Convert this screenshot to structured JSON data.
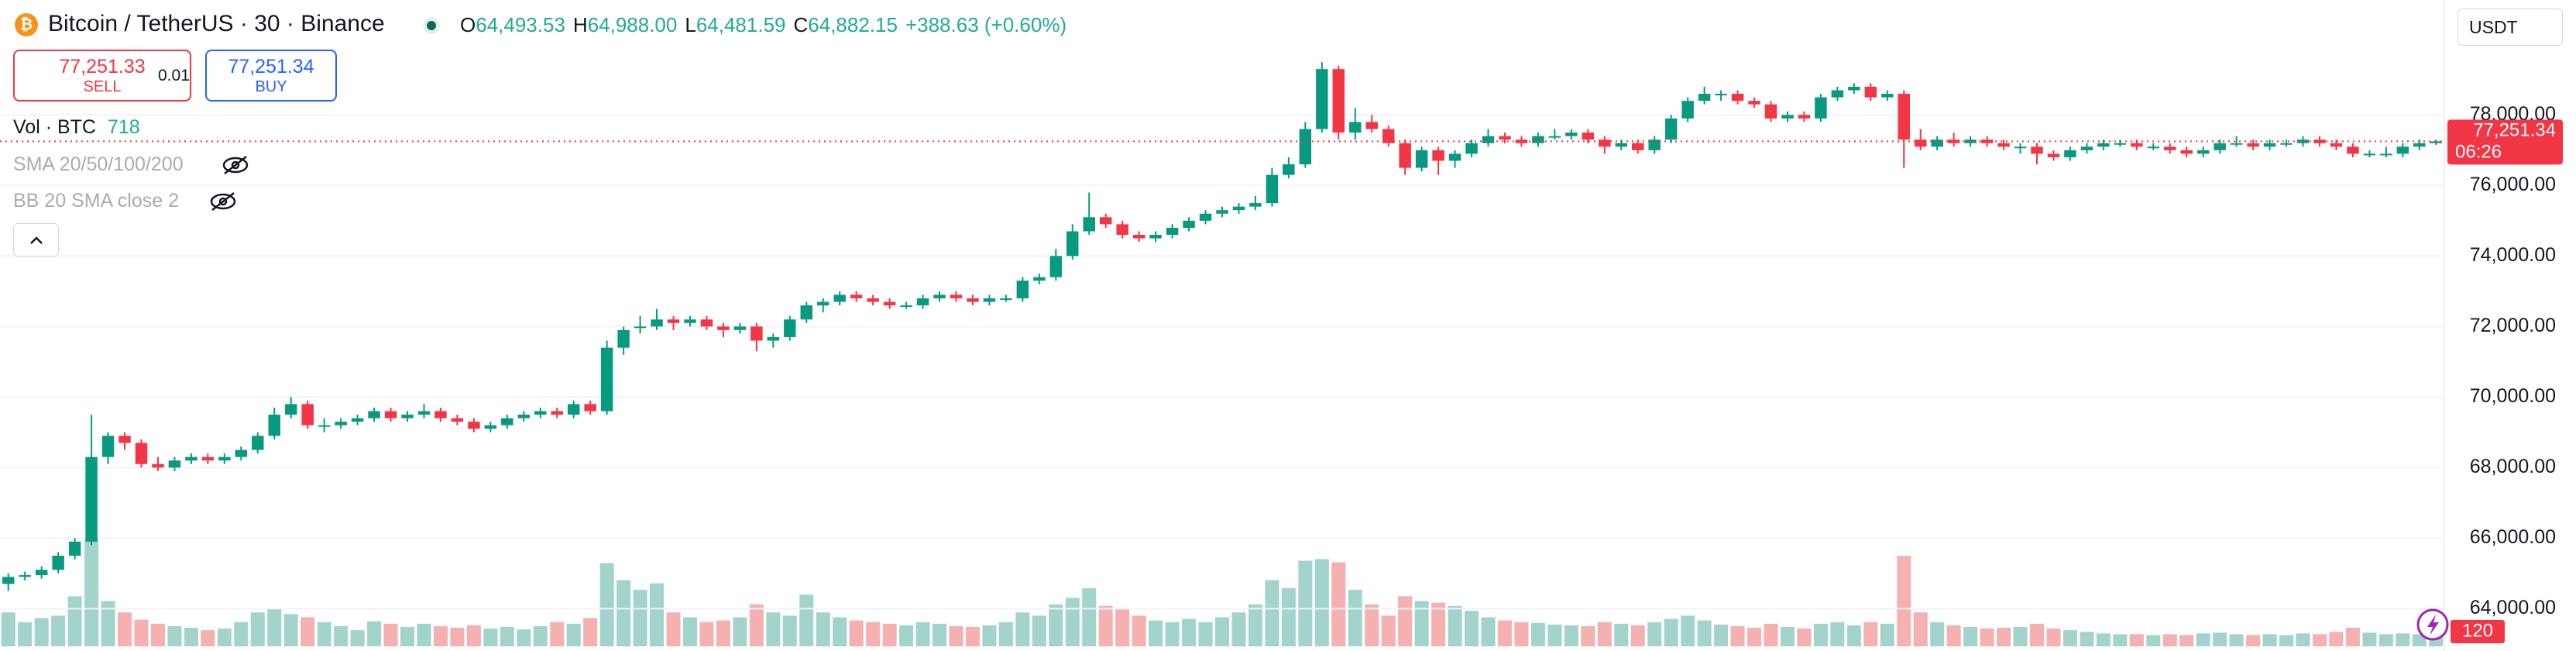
{
  "header": {
    "title": "Bitcoin / TetherUS · 30 · Binance",
    "ohlc": [
      {
        "key": "O",
        "value": "64,493.53"
      },
      {
        "key": "H",
        "value": "64,988.00"
      },
      {
        "key": "L",
        "value": "64,481.59"
      },
      {
        "key": "C",
        "value": "64,882.15"
      }
    ],
    "change": "+388.63 (+0.60%)"
  },
  "trade": {
    "sell_price": "77,251.33",
    "sell": "SELL",
    "quantity": "0.01",
    "buy_price": "77,251.34",
    "buy": "BUY"
  },
  "indicators": {
    "volume": {
      "label": "Vol · BTC",
      "value": 718
    },
    "sma": "SMA 20/50/100/200",
    "bb": "BB 20 SMA close 2"
  },
  "currency": "USDT",
  "chart_data": {
    "type": "candlestick",
    "candles": [
      [
        64700,
        65000,
        64500,
        64900,
        420
      ],
      [
        64900,
        65050,
        64800,
        64950,
        300
      ],
      [
        64950,
        65200,
        64850,
        65100,
        350
      ],
      [
        65100,
        65600,
        65000,
        65500,
        380
      ],
      [
        65500,
        66000,
        65400,
        65900,
        620
      ],
      [
        65900,
        69500,
        65800,
        68300,
        1330
      ],
      [
        68300,
        69000,
        68100,
        68900,
        560
      ],
      [
        68900,
        69000,
        68500,
        68700,
        420
      ],
      [
        68700,
        68800,
        68000,
        68100,
        330
      ],
      [
        68100,
        68300,
        67900,
        68000,
        280
      ],
      [
        68000,
        68300,
        67900,
        68200,
        250
      ],
      [
        68200,
        68400,
        68100,
        68300,
        230
      ],
      [
        68300,
        68400,
        68100,
        68200,
        200
      ],
      [
        68200,
        68400,
        68100,
        68300,
        220
      ],
      [
        68300,
        68600,
        68200,
        68500,
        300
      ],
      [
        68500,
        69000,
        68400,
        68900,
        420
      ],
      [
        68900,
        69700,
        68800,
        69500,
        460
      ],
      [
        69500,
        70000,
        69400,
        69800,
        400
      ],
      [
        69800,
        69900,
        69100,
        69200,
        360
      ],
      [
        69200,
        69400,
        69000,
        69200,
        300
      ],
      [
        69200,
        69400,
        69100,
        69300,
        250
      ],
      [
        69300,
        69500,
        69200,
        69400,
        200
      ],
      [
        69400,
        69700,
        69300,
        69600,
        310
      ],
      [
        69600,
        69700,
        69300,
        69400,
        280
      ],
      [
        69400,
        69600,
        69300,
        69500,
        240
      ],
      [
        69500,
        69800,
        69400,
        69600,
        280
      ],
      [
        69600,
        69700,
        69300,
        69400,
        250
      ],
      [
        69400,
        69500,
        69200,
        69300,
        230
      ],
      [
        69300,
        69400,
        69000,
        69100,
        260
      ],
      [
        69100,
        69300,
        69000,
        69200,
        220
      ],
      [
        69200,
        69500,
        69100,
        69400,
        240
      ],
      [
        69400,
        69600,
        69300,
        69500,
        210
      ],
      [
        69500,
        69700,
        69400,
        69600,
        250
      ],
      [
        69600,
        69700,
        69400,
        69500,
        300
      ],
      [
        69500,
        69900,
        69400,
        69800,
        280
      ],
      [
        69800,
        69900,
        69500,
        69600,
        350
      ],
      [
        69600,
        71600,
        69500,
        71400,
        1030
      ],
      [
        71400,
        72000,
        71200,
        71900,
        820
      ],
      [
        72000,
        72300,
        71800,
        72000,
        700
      ],
      [
        72000,
        72500,
        71900,
        72200,
        780
      ],
      [
        72200,
        72300,
        71900,
        72100,
        420
      ],
      [
        72100,
        72300,
        72000,
        72200,
        360
      ],
      [
        72200,
        72300,
        71900,
        72000,
        300
      ],
      [
        72000,
        72100,
        71700,
        71900,
        320
      ],
      [
        71900,
        72100,
        71800,
        72000,
        360
      ],
      [
        72000,
        72100,
        71300,
        71600,
        520
      ],
      [
        71600,
        71800,
        71400,
        71700,
        420
      ],
      [
        71700,
        72300,
        71600,
        72200,
        380
      ],
      [
        72200,
        72700,
        72100,
        72600,
        640
      ],
      [
        72600,
        72800,
        72400,
        72700,
        420
      ],
      [
        72700,
        73000,
        72600,
        72900,
        360
      ],
      [
        72900,
        73000,
        72700,
        72800,
        320
      ],
      [
        72800,
        72900,
        72600,
        72700,
        300
      ],
      [
        72700,
        72800,
        72500,
        72600,
        280
      ],
      [
        72600,
        72700,
        72500,
        72600,
        260
      ],
      [
        72600,
        72900,
        72500,
        72800,
        300
      ],
      [
        72800,
        73000,
        72700,
        72900,
        280
      ],
      [
        72900,
        73000,
        72700,
        72800,
        250
      ],
      [
        72800,
        72900,
        72600,
        72700,
        240
      ],
      [
        72700,
        72900,
        72600,
        72800,
        260
      ],
      [
        72800,
        72900,
        72700,
        72800,
        300
      ],
      [
        72800,
        73400,
        72700,
        73300,
        420
      ],
      [
        73300,
        73500,
        73200,
        73400,
        380
      ],
      [
        73400,
        74200,
        73300,
        74000,
        520
      ],
      [
        74000,
        74900,
        73900,
        74700,
        600
      ],
      [
        74700,
        75800,
        74600,
        75100,
        720
      ],
      [
        75100,
        75200,
        74800,
        74900,
        500
      ],
      [
        74900,
        75000,
        74500,
        74600,
        460
      ],
      [
        74600,
        74700,
        74400,
        74500,
        380
      ],
      [
        74500,
        74700,
        74400,
        74600,
        320
      ],
      [
        74600,
        74900,
        74500,
        74800,
        300
      ],
      [
        74800,
        75100,
        74700,
        75000,
        340
      ],
      [
        75000,
        75300,
        74900,
        75200,
        300
      ],
      [
        75200,
        75400,
        75100,
        75300,
        360
      ],
      [
        75300,
        75500,
        75200,
        75400,
        420
      ],
      [
        75400,
        75700,
        75300,
        75500,
        520
      ],
      [
        75500,
        76500,
        75400,
        76300,
        820
      ],
      [
        76300,
        76800,
        76200,
        76600,
        720
      ],
      [
        76600,
        77800,
        76500,
        77600,
        1060
      ],
      [
        77600,
        79500,
        77500,
        79300,
        1080
      ],
      [
        79300,
        79400,
        77300,
        77500,
        1040
      ],
      [
        77500,
        78200,
        77300,
        77800,
        700
      ],
      [
        77800,
        78000,
        77500,
        77600,
        520
      ],
      [
        77600,
        77700,
        77100,
        77200,
        380
      ],
      [
        77200,
        77300,
        76300,
        76500,
        620
      ],
      [
        76500,
        77100,
        76400,
        77000,
        560
      ],
      [
        77000,
        77100,
        76300,
        76700,
        540
      ],
      [
        76700,
        77000,
        76500,
        76900,
        500
      ],
      [
        76900,
        77300,
        76800,
        77200,
        440
      ],
      [
        77200,
        77600,
        77100,
        77400,
        360
      ],
      [
        77400,
        77500,
        77200,
        77300,
        320
      ],
      [
        77300,
        77400,
        77100,
        77200,
        300
      ],
      [
        77200,
        77500,
        77100,
        77400,
        290
      ],
      [
        77400,
        77600,
        77300,
        77400,
        270
      ],
      [
        77400,
        77600,
        77300,
        77500,
        260
      ],
      [
        77500,
        77600,
        77200,
        77300,
        250
      ],
      [
        77300,
        77400,
        76900,
        77100,
        300
      ],
      [
        77100,
        77300,
        77000,
        77200,
        280
      ],
      [
        77200,
        77300,
        76900,
        77000,
        260
      ],
      [
        77000,
        77400,
        76900,
        77300,
        300
      ],
      [
        77300,
        78000,
        77200,
        77900,
        340
      ],
      [
        77900,
        78500,
        77800,
        78400,
        380
      ],
      [
        78400,
        78800,
        78300,
        78600,
        320
      ],
      [
        78600,
        78700,
        78400,
        78600,
        270
      ],
      [
        78600,
        78700,
        78300,
        78400,
        250
      ],
      [
        78400,
        78500,
        78200,
        78300,
        230
      ],
      [
        78300,
        78400,
        77800,
        77900,
        280
      ],
      [
        77900,
        78100,
        77800,
        78000,
        240
      ],
      [
        78000,
        78100,
        77800,
        77900,
        220
      ],
      [
        77900,
        78600,
        77800,
        78500,
        280
      ],
      [
        78500,
        78800,
        78400,
        78700,
        300
      ],
      [
        78700,
        78900,
        78600,
        78800,
        260
      ],
      [
        78800,
        78900,
        78400,
        78500,
        300
      ],
      [
        78500,
        78700,
        78400,
        78600,
        280
      ],
      [
        78600,
        78700,
        76500,
        77300,
        1120
      ],
      [
        77300,
        77600,
        77000,
        77100,
        420
      ],
      [
        77100,
        77400,
        77000,
        77300,
        300
      ],
      [
        77300,
        77500,
        77100,
        77200,
        260
      ],
      [
        77200,
        77400,
        77100,
        77300,
        240
      ],
      [
        77300,
        77400,
        77100,
        77200,
        220
      ],
      [
        77200,
        77300,
        77000,
        77100,
        230
      ],
      [
        77100,
        77200,
        76900,
        77100,
        240
      ],
      [
        77100,
        77200,
        76600,
        76900,
        280
      ],
      [
        76900,
        77000,
        76700,
        76800,
        220
      ],
      [
        76800,
        77100,
        76700,
        77000,
        200
      ],
      [
        77000,
        77200,
        76900,
        77100,
        180
      ],
      [
        77100,
        77300,
        77000,
        77200,
        160
      ],
      [
        77200,
        77300,
        77100,
        77200,
        150
      ],
      [
        77200,
        77300,
        77000,
        77100,
        150
      ],
      [
        77100,
        77200,
        77000,
        77100,
        140
      ],
      [
        77100,
        77200,
        76900,
        77000,
        150
      ],
      [
        77000,
        77100,
        76800,
        76900,
        140
      ],
      [
        76900,
        77100,
        76800,
        77000,
        160
      ],
      [
        77000,
        77300,
        76900,
        77200,
        170
      ],
      [
        77200,
        77400,
        77100,
        77200,
        150
      ],
      [
        77200,
        77300,
        77000,
        77100,
        140
      ],
      [
        77100,
        77300,
        77000,
        77200,
        150
      ],
      [
        77200,
        77300,
        77100,
        77200,
        140
      ],
      [
        77200,
        77400,
        77100,
        77300,
        160
      ],
      [
        77300,
        77400,
        77100,
        77200,
        150
      ],
      [
        77200,
        77300,
        77000,
        77100,
        180
      ],
      [
        77100,
        77200,
        76800,
        76900,
        230
      ],
      [
        76900,
        77000,
        76800,
        76900,
        170
      ],
      [
        76900,
        77100,
        76800,
        76900,
        150
      ],
      [
        76900,
        77200,
        76800,
        77100,
        160
      ],
      [
        77100,
        77300,
        77000,
        77200,
        150
      ],
      [
        77200,
        77300,
        77150,
        77251.34,
        120
      ]
    ],
    "ylim": [
      62930,
      81260
    ],
    "yticks": [
      {
        "value": 78000,
        "label": "78,000.00"
      },
      {
        "value": 76000,
        "label": "76,000.00"
      },
      {
        "value": 74000,
        "label": "74,000.00"
      },
      {
        "value": 72000,
        "label": "72,000.00"
      },
      {
        "value": 70000,
        "label": "70,000.00"
      },
      {
        "value": 68000,
        "label": "68,000.00"
      },
      {
        "value": 66000,
        "label": "66,000.00"
      },
      {
        "value": 64000,
        "label": "64,000.00"
      }
    ],
    "volume_lim": [
      0,
      8000
    ],
    "last_price": {
      "value": 77251.34,
      "label": "77,251.34"
    },
    "countdown": "06:26",
    "grid": true,
    "up_color": "#089981",
    "down_color": "#f23645",
    "up_volume_color": "#a3d4cc",
    "down_volume_color": "#f5b0b0"
  }
}
